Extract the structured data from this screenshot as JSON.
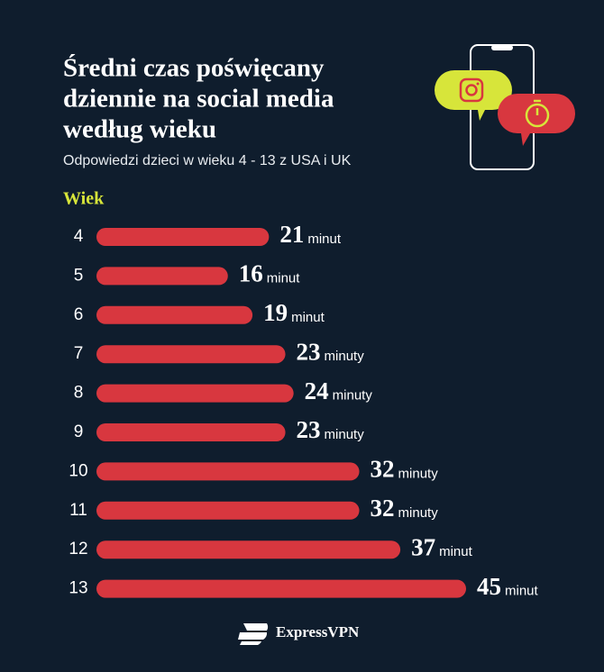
{
  "chart_data": {
    "type": "bar",
    "title": [
      "Średni czas poświęcany",
      "dziennie na social media",
      "według wieku"
    ],
    "subtitle": "Odpowiedzi dzieci w wieku 4 - 13 z USA i UK",
    "y_label": "Wiek",
    "categories": [
      "4",
      "5",
      "6",
      "7",
      "8",
      "9",
      "10",
      "11",
      "12",
      "13"
    ],
    "values": [
      21,
      16,
      19,
      23,
      24,
      23,
      32,
      32,
      37,
      45
    ],
    "units": [
      "minut",
      "minut",
      "minut",
      "minuty",
      "minuty",
      "minuty",
      "minuty",
      "minuty",
      "minut",
      "minut"
    ],
    "color": "#d8373f",
    "xlim": [
      0,
      45
    ],
    "logo": "ExpressVPN"
  }
}
